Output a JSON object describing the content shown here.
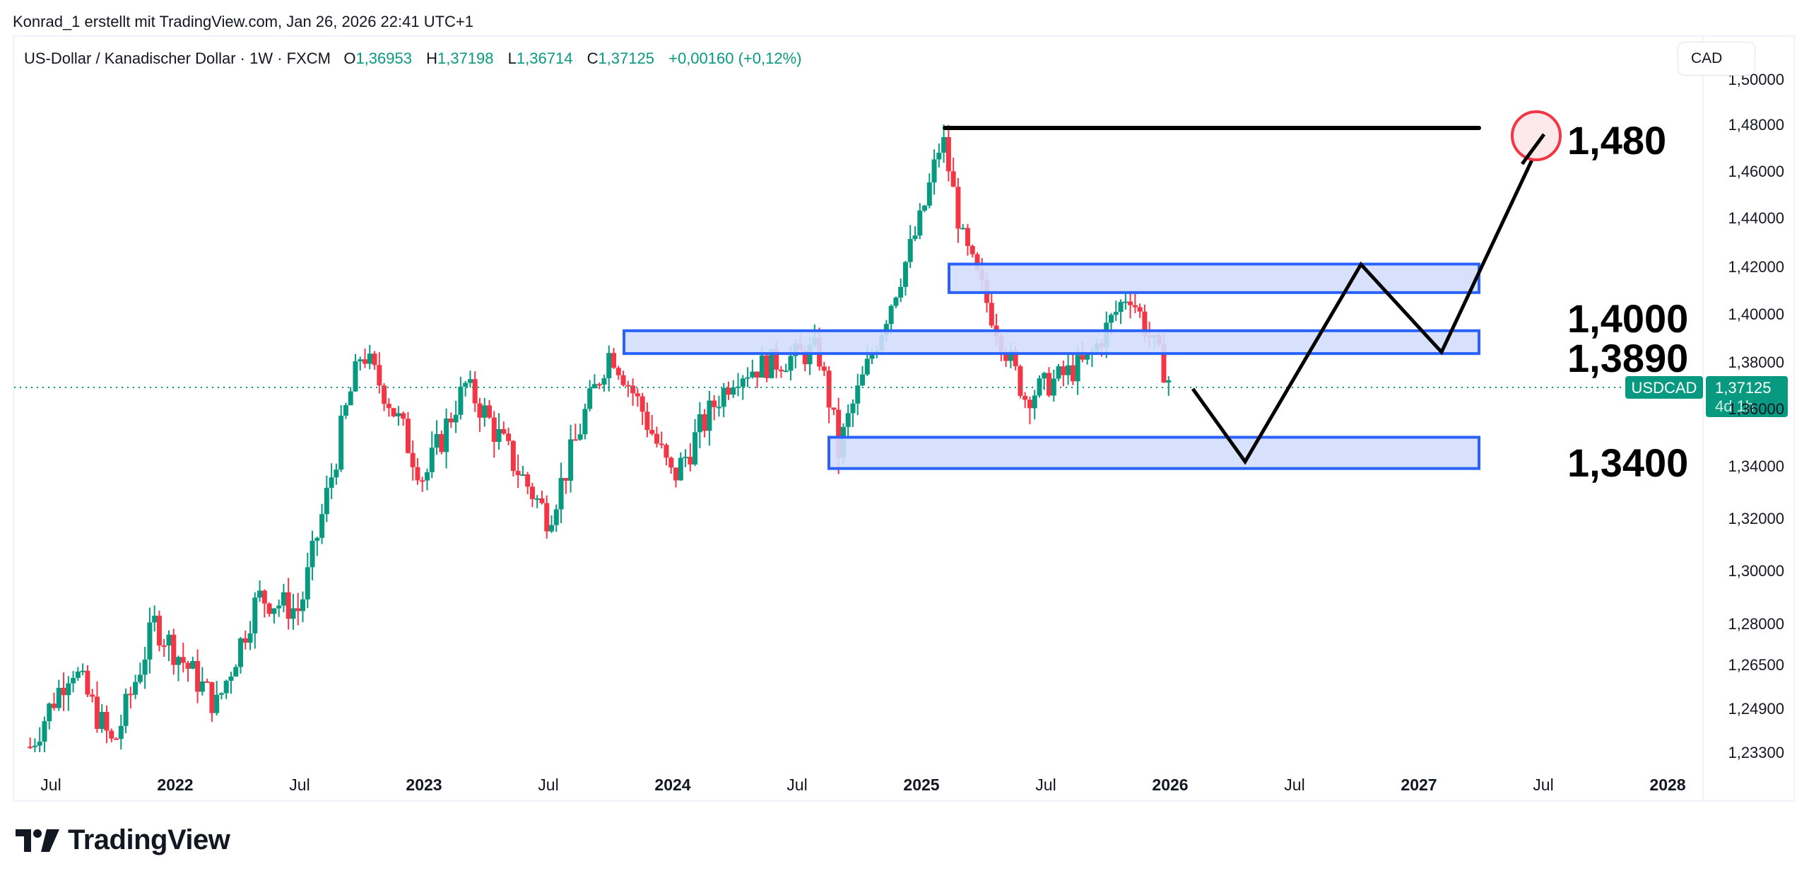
{
  "header": {
    "credit": "Konrad_1 erstellt mit TradingView.com, Jan 26, 2026 22:41 UTC+1"
  },
  "legend": {
    "symbol_desc": "US-Dollar / Kanadischer Dollar · 1W · FXCM",
    "open_label": "O",
    "open": "1,36953",
    "high_label": "H",
    "high": "1,37198",
    "low_label": "L",
    "low": "1,36714",
    "close_label": "C",
    "close": "1,37125",
    "change": "+0,00160 (+0,12%)"
  },
  "currency_button": {
    "label": "CAD"
  },
  "price_axis": {
    "ticks": [
      "1,50000",
      "1,48000",
      "1,46000",
      "1,44000",
      "1,42000",
      "1,40000",
      "1,38000",
      "1,36000",
      "1,34000",
      "1,32000",
      "1,30000",
      "1,28000",
      "1,26500",
      "1,24900",
      "1,23300"
    ]
  },
  "time_axis": {
    "ticks": [
      "Jul",
      "2022",
      "Jul",
      "2023",
      "Jul",
      "2024",
      "Jul",
      "2025",
      "Jul",
      "2026",
      "Jul",
      "2027",
      "Jul",
      "2028"
    ]
  },
  "last_price": {
    "symbol": "USDCAD",
    "price": "1,37125",
    "countdown": "4d 1h",
    "color": "#089981"
  },
  "annotations": {
    "target_label": "1,480",
    "zone_label_1": "1,4000",
    "zone_label_2": "1,3890",
    "zone_label_3": "1,3400"
  },
  "brand": {
    "name": "TradingView"
  },
  "colors": {
    "up": "#089981",
    "down": "#f23645",
    "zone_fill": "#d3defc",
    "zone_border": "#2962ff",
    "target_circle": "#f23645",
    "drawing": "#000000"
  },
  "chart_data": {
    "type": "candlestick",
    "title": "US-Dollar / Kanadischer Dollar · 1W · FXCM",
    "symbol": "USDCAD",
    "interval": "1W",
    "xlabel": "",
    "ylabel": "CAD",
    "ylim": [
      1.225,
      1.5
    ],
    "x_ticks": [
      "Jul 2021",
      "2022",
      "Jul 2022",
      "2023",
      "Jul 2023",
      "2024",
      "Jul 2024",
      "2025",
      "Jul 2025",
      "2026",
      "Jul 2026",
      "2027",
      "Jul 2027",
      "2028"
    ],
    "y_ticks": [
      1.233,
      1.249,
      1.265,
      1.28,
      1.3,
      1.32,
      1.34,
      1.36,
      1.38,
      1.4,
      1.42,
      1.44,
      1.46,
      1.48
    ],
    "last": {
      "open": 1.36953,
      "high": 1.37198,
      "low": 1.36714,
      "close": 1.37125,
      "change": 0.0016,
      "change_pct": 0.12
    },
    "approx_path": [
      {
        "date": "2021-06",
        "close": 1.235
      },
      {
        "date": "2021-08",
        "close": 1.265
      },
      {
        "date": "2021-10",
        "close": 1.235
      },
      {
        "date": "2021-12",
        "close": 1.28
      },
      {
        "date": "2022-03",
        "close": 1.25
      },
      {
        "date": "2022-05",
        "close": 1.29
      },
      {
        "date": "2022-07",
        "close": 1.285
      },
      {
        "date": "2022-10",
        "close": 1.385
      },
      {
        "date": "2023-01",
        "close": 1.335
      },
      {
        "date": "2023-03",
        "close": 1.37
      },
      {
        "date": "2023-07",
        "close": 1.32
      },
      {
        "date": "2023-10",
        "close": 1.385
      },
      {
        "date": "2024-01",
        "close": 1.335
      },
      {
        "date": "2024-04",
        "close": 1.375
      },
      {
        "date": "2024-08",
        "close": 1.385
      },
      {
        "date": "2024-09",
        "close": 1.345
      },
      {
        "date": "2025-01",
        "close": 1.44
      },
      {
        "date": "2025-02",
        "close": 1.475
      },
      {
        "date": "2025-03",
        "close": 1.43
      },
      {
        "date": "2025-06",
        "close": 1.365
      },
      {
        "date": "2025-09",
        "close": 1.38
      },
      {
        "date": "2025-11",
        "close": 1.41
      },
      {
        "date": "2026-01",
        "close": 1.371
      }
    ],
    "zones": [
      {
        "name": "upper",
        "from": 1.409,
        "to": 1.421
      },
      {
        "name": "middle",
        "from": 1.3835,
        "to": 1.393
      },
      {
        "name": "lower",
        "from": 1.339,
        "to": 1.35
      }
    ],
    "horizontal_line": 1.4793,
    "projection_path": [
      {
        "date": "2026-01",
        "price": 1.371
      },
      {
        "date": "2026-05",
        "price": 1.342
      },
      {
        "date": "2026-11",
        "price": 1.421
      },
      {
        "date": "2027-03",
        "price": 1.385
      },
      {
        "date": "2027-06",
        "price": 1.476
      }
    ],
    "annotations": [
      "1,480",
      "1,4000",
      "1,3890",
      "1,3400"
    ]
  }
}
